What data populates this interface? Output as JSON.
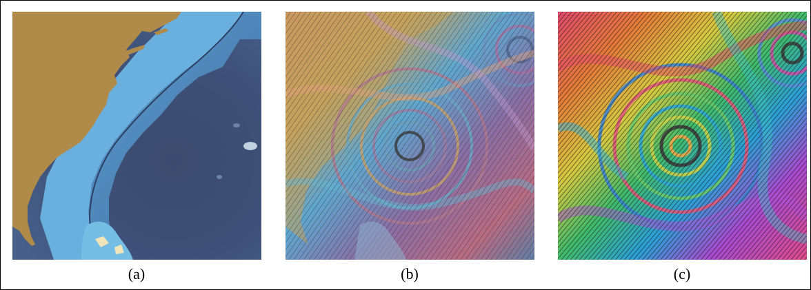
{
  "figure": {
    "panels": [
      {
        "id": "a",
        "label": "(a)"
      },
      {
        "id": "b",
        "label": "(b)"
      },
      {
        "id": "c",
        "label": "(c)"
      }
    ]
  },
  "colors": {
    "land": "#b08a49",
    "shelf": "#6ab0de",
    "deep_ocean": "#3e4f73",
    "border": "#000000"
  }
}
